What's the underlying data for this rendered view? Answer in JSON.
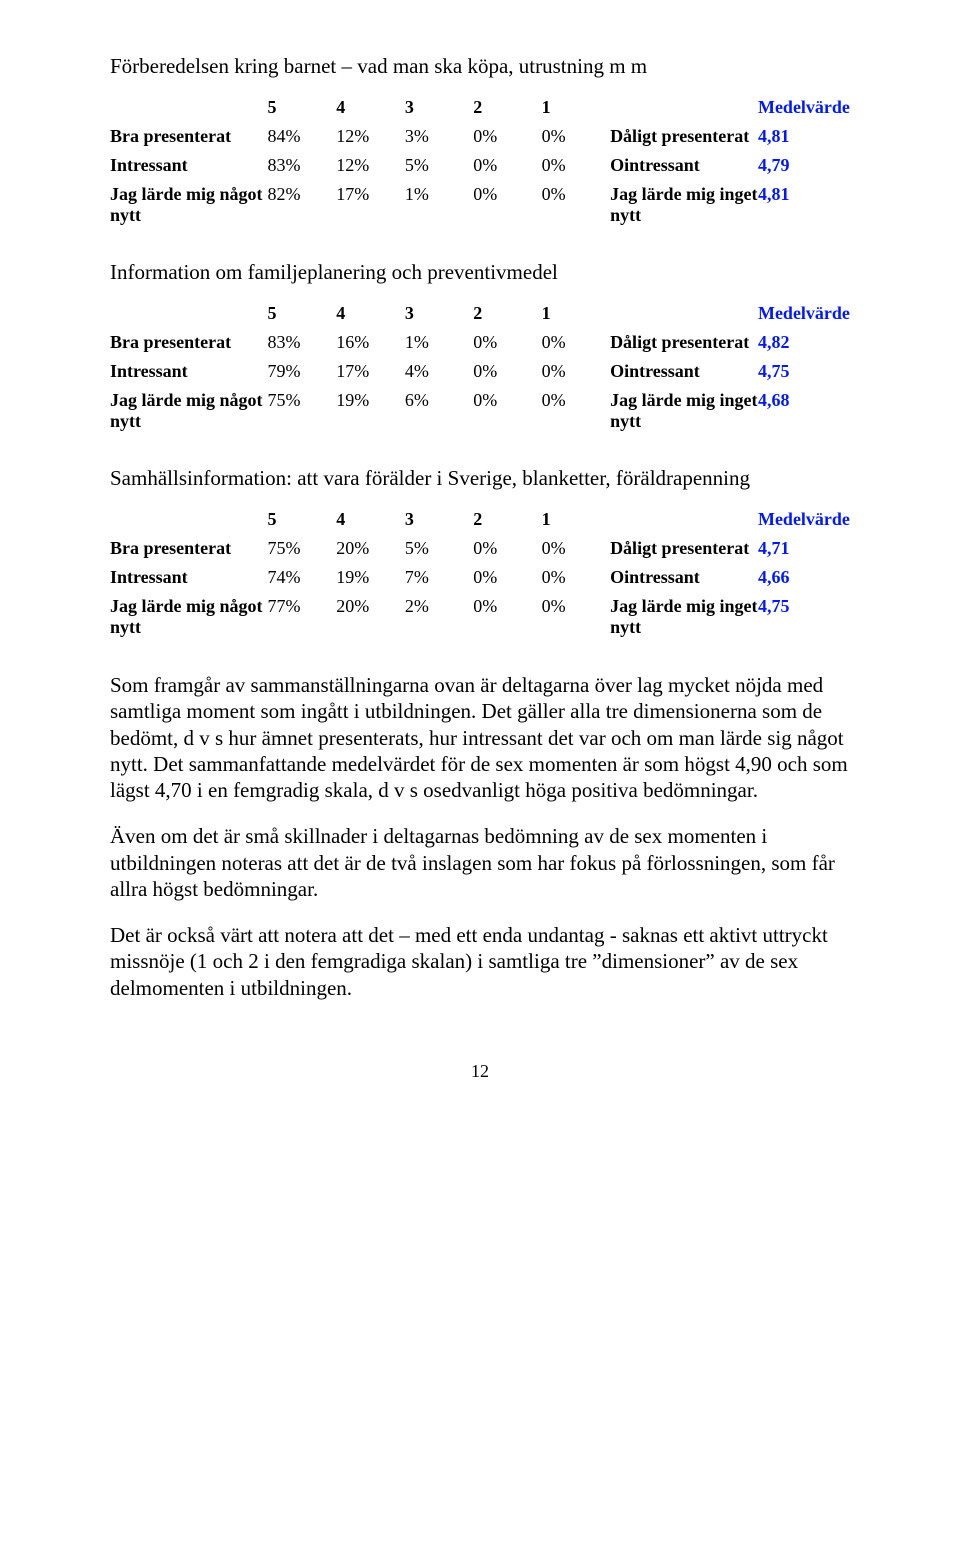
{
  "colors": {
    "text": "#000000",
    "accent": "#0018ff",
    "background": "#ffffff"
  },
  "typography": {
    "font_family": "Times New Roman",
    "body_pt": 16,
    "title_pt": 16
  },
  "labels": {
    "bra_presenterat": "Bra presenterat",
    "daligt_presenterat": "Dåligt presenterat",
    "intressant": "Intressant",
    "ointressant": "Ointressant",
    "jag_larde_nagot": "Jag lärde mig något nytt",
    "jag_larde_inget": "Jag lärde mig inget nytt",
    "medelvarde": "Medelvärde"
  },
  "scale": [
    "5",
    "4",
    "3",
    "2",
    "1"
  ],
  "sections": [
    {
      "title": "Förberedelsen kring barnet – vad man ska köpa, utrustning m m",
      "rows": {
        "bra": {
          "v": [
            "84%",
            "12%",
            "3%",
            "0%",
            "0%"
          ],
          "mean": "4,81"
        },
        "intr": {
          "v": [
            "83%",
            "12%",
            "5%",
            "0%",
            "0%"
          ],
          "mean": "4,79"
        },
        "lar": {
          "v": [
            "82%",
            "17%",
            "1%",
            "0%",
            "0%"
          ],
          "mean": "4,81"
        }
      }
    },
    {
      "title": "Information om familjeplanering och preventivmedel",
      "rows": {
        "bra": {
          "v": [
            "83%",
            "16%",
            "1%",
            "0%",
            "0%"
          ],
          "mean": "4,82"
        },
        "intr": {
          "v": [
            "79%",
            "17%",
            "4%",
            "0%",
            "0%"
          ],
          "mean": "4,75"
        },
        "lar": {
          "v": [
            "75%",
            "19%",
            "6%",
            "0%",
            "0%"
          ],
          "mean": "4,68"
        }
      }
    },
    {
      "title": "Samhällsinformation: att vara förälder i Sverige, blanketter, föräldrapenning",
      "rows": {
        "bra": {
          "v": [
            "75%",
            "20%",
            "5%",
            "0%",
            "0%"
          ],
          "mean": "4,71"
        },
        "intr": {
          "v": [
            "74%",
            "19%",
            "7%",
            "0%",
            "0%"
          ],
          "mean": "4,66"
        },
        "lar": {
          "v": [
            "77%",
            "20%",
            "2%",
            "0%",
            "0%"
          ],
          "mean": "4,75"
        }
      }
    }
  ],
  "paragraphs": [
    "Som framgår av sammanställningarna ovan är deltagarna över lag mycket nöjda med samtliga moment som ingått i utbildningen. Det gäller alla tre dimensionerna som de bedömt, d v s hur ämnet presenterats, hur intressant det var och om man lärde sig något nytt. Det sammanfattande medelvärdet för de sex momenten är som högst 4,90 och som lägst 4,70 i en femgradig skala, d v s osedvanligt höga positiva bedömningar.",
    "Även om det är små skillnader i deltagarnas bedömning av de sex momenten i utbildningen noteras att det är de två inslagen som har fokus på förlossningen, som får allra högst bedömningar.",
    "Det är också värt att notera att det – med ett enda undantag - saknas ett aktivt uttryckt missnöje (1 och 2 i den femgradiga skalan) i samtliga tre ”dimensioner” av de sex delmomenten i utbildningen."
  ],
  "page_number": "12"
}
